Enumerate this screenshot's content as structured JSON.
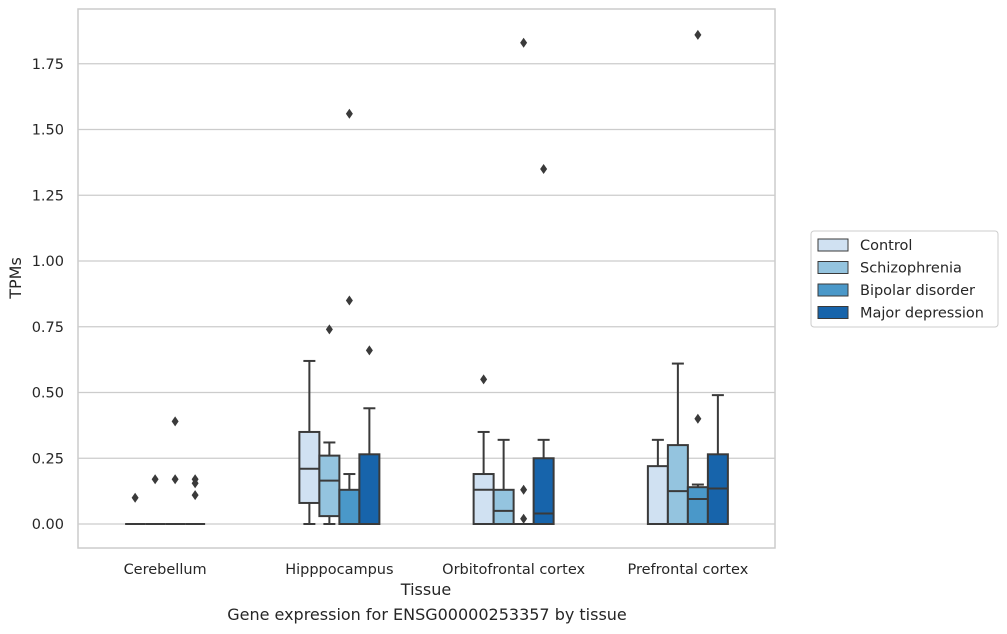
{
  "caption": "Gene expression for ENSG00000253357 by tissue",
  "chart_data": {
    "type": "box",
    "xlabel": "Tissue",
    "ylabel": "TPMs",
    "ylim": [
      -0.09,
      1.95
    ],
    "yticks": [
      0.0,
      0.25,
      0.5,
      0.75,
      1.0,
      1.25,
      1.5,
      1.75
    ],
    "ytick_labels": [
      "0.00",
      "0.25",
      "0.50",
      "0.75",
      "1.00",
      "1.25",
      "1.50",
      "1.75"
    ],
    "grid": true,
    "legend_position": "right",
    "categories": [
      "Cerebellum",
      "Hipppocampus",
      "Orbitofrontal cortex",
      "Prefrontal cortex"
    ],
    "series": [
      {
        "name": "Control",
        "color": "#d0e1f2",
        "boxes": [
          {
            "whislo": 0.0,
            "q1": 0.0,
            "med": 0.0,
            "q3": 0.0,
            "whishi": 0.0,
            "fliers": [
              0.1
            ]
          },
          {
            "whislo": 0.0,
            "q1": 0.08,
            "med": 0.21,
            "q3": 0.35,
            "whishi": 0.62,
            "fliers": []
          },
          {
            "whislo": 0.0,
            "q1": 0.0,
            "med": 0.13,
            "q3": 0.19,
            "whishi": 0.35,
            "fliers": [
              0.55
            ]
          },
          {
            "whislo": 0.0,
            "q1": 0.0,
            "med": 0.0,
            "q3": 0.22,
            "whishi": 0.32,
            "fliers": []
          }
        ]
      },
      {
        "name": "Schizophrenia",
        "color": "#94c4df",
        "boxes": [
          {
            "whislo": 0.0,
            "q1": 0.0,
            "med": 0.0,
            "q3": 0.0,
            "whishi": 0.0,
            "fliers": [
              0.17
            ]
          },
          {
            "whislo": 0.0,
            "q1": 0.03,
            "med": 0.165,
            "q3": 0.26,
            "whishi": 0.31,
            "fliers": [
              0.74
            ]
          },
          {
            "whislo": 0.0,
            "q1": 0.0,
            "med": 0.05,
            "q3": 0.13,
            "whishi": 0.32,
            "fliers": []
          },
          {
            "whislo": 0.0,
            "q1": 0.0,
            "med": 0.125,
            "q3": 0.3,
            "whishi": 0.61,
            "fliers": []
          }
        ]
      },
      {
        "name": "Bipolar disorder",
        "color": "#4a98c9",
        "boxes": [
          {
            "whislo": 0.0,
            "q1": 0.0,
            "med": 0.0,
            "q3": 0.0,
            "whishi": 0.0,
            "fliers": [
              0.39,
              0.17
            ]
          },
          {
            "whislo": 0.0,
            "q1": 0.0,
            "med": 0.0,
            "q3": 0.13,
            "whishi": 0.19,
            "fliers": [
              1.56,
              0.85
            ]
          },
          {
            "whislo": 0.0,
            "q1": 0.0,
            "med": 0.0,
            "q3": 0.0,
            "whishi": 0.0,
            "fliers": [
              0.13,
              0.02,
              1.83
            ]
          },
          {
            "whislo": 0.0,
            "q1": 0.0,
            "med": 0.095,
            "q3": 0.14,
            "whishi": 0.15,
            "fliers": [
              0.4,
              1.86
            ]
          }
        ]
      },
      {
        "name": "Major depression",
        "color": "#1764ab",
        "boxes": [
          {
            "whislo": 0.0,
            "q1": 0.0,
            "med": 0.0,
            "q3": 0.0,
            "whishi": 0.0,
            "fliers": [
              0.17,
              0.155,
              0.11
            ]
          },
          {
            "whislo": 0.0,
            "q1": 0.0,
            "med": 0.0,
            "q3": 0.265,
            "whishi": 0.44,
            "fliers": [
              0.66
            ]
          },
          {
            "whislo": 0.0,
            "q1": 0.0,
            "med": 0.04,
            "q3": 0.25,
            "whishi": 0.32,
            "fliers": [
              1.35
            ]
          },
          {
            "whislo": 0.0,
            "q1": 0.0,
            "med": 0.135,
            "q3": 0.265,
            "whishi": 0.49,
            "fliers": []
          }
        ]
      }
    ]
  }
}
